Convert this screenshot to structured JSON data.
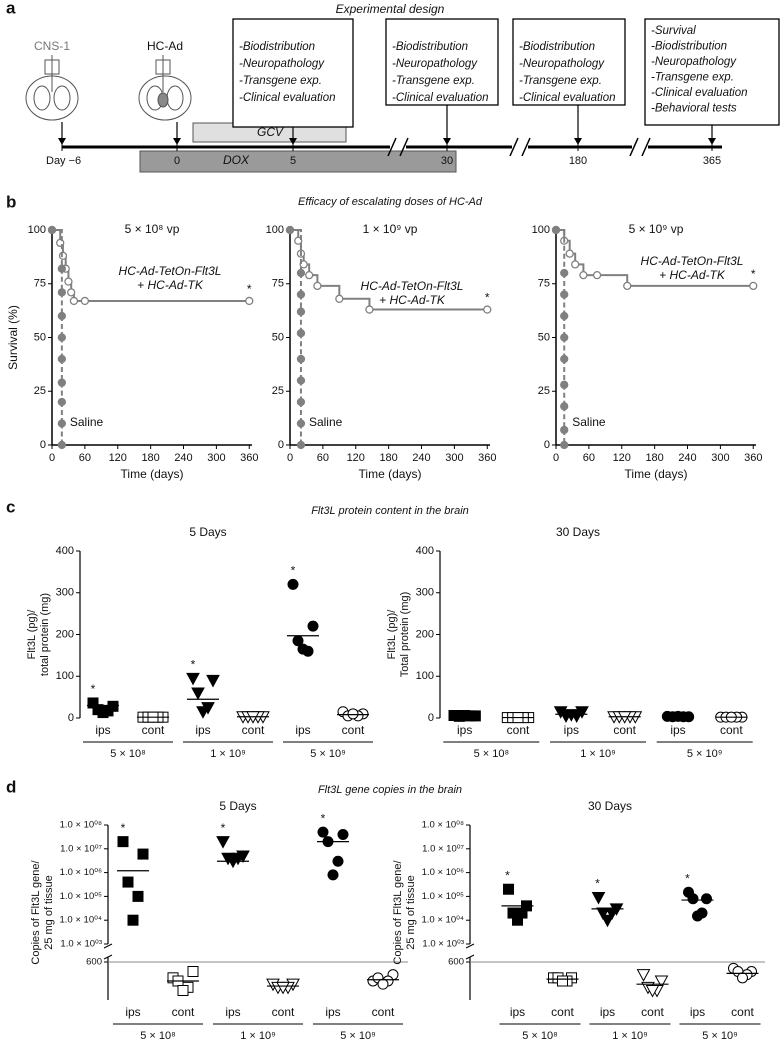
{
  "panel_labels": [
    "a",
    "b",
    "c",
    "d"
  ],
  "design": {
    "title": "Experimental design",
    "tumor_label": "CNS-1",
    "vector_label": "HC-Ad",
    "boxes": [
      [
        "-Biodistribution",
        "-Neuropathology",
        "-Transgene exp.",
        "-Clinical evaluation"
      ],
      [
        "-Biodistribution",
        "-Neuropathology",
        "-Transgene exp.",
        "-Clinical evaluation"
      ],
      [
        "-Biodistribution",
        "-Neuropathology",
        "-Transgene exp.",
        "-Clinical evaluation"
      ],
      [
        "-Survival",
        "-Biodistribution",
        "-Neuropathology",
        "-Transgene exp.",
        "-Clinical evaluation",
        "-Behavioral tests"
      ]
    ],
    "gcv_label": "GCV",
    "dox_label": "DOX",
    "timeline": [
      "Day −6",
      "0",
      "5",
      "30",
      "180",
      "365"
    ]
  },
  "survival_title": "Efficacy of escalating doses of HC-Ad",
  "protein_title": "Flt3L protein content in the brain",
  "gene_title": "Flt3L gene copies in the brain",
  "chart_data": [
    {
      "type": "line",
      "title": "5 × 10⁸ vp",
      "xlabel": "Time (days)",
      "ylabel": "Survival (%)",
      "xlim": [
        0,
        365
      ],
      "xticks": [
        0,
        60,
        120,
        180,
        240,
        300,
        360
      ],
      "ylim": [
        0,
        100
      ],
      "yticks": [
        0,
        25,
        50,
        75,
        100
      ],
      "series": [
        {
          "label": [
            "HC-Ad-TetOn-Flt3L",
            "+ HC-Ad-TK"
          ],
          "color": "#808080",
          "dashed": false,
          "marker": "open",
          "end_mark": "*",
          "x": [
            0,
            15,
            20,
            25,
            30,
            35,
            40,
            60,
            360
          ],
          "values": [
            100,
            94,
            88,
            82,
            76,
            71,
            67,
            67,
            67
          ]
        },
        {
          "label": [
            "Saline"
          ],
          "color": "#808080",
          "dashed": true,
          "marker": "filled",
          "x": [
            0,
            18,
            18,
            18,
            18,
            18,
            18,
            18,
            18,
            18
          ],
          "values": [
            100,
            82,
            71,
            60,
            50,
            40,
            29,
            20,
            10,
            0
          ]
        }
      ]
    },
    {
      "type": "line",
      "title": "1 × 10⁹ vp",
      "xlabel": "Time (days)",
      "xlim": [
        0,
        365
      ],
      "xticks": [
        0,
        60,
        120,
        180,
        240,
        300,
        360
      ],
      "ylim": [
        0,
        100
      ],
      "yticks": [
        0,
        25,
        50,
        75,
        100
      ],
      "series": [
        {
          "label": [
            "HC-Ad-TetOn-Flt3L",
            "+ HC-Ad-TK"
          ],
          "color": "#808080",
          "dashed": false,
          "marker": "open",
          "end_mark": "*",
          "x": [
            0,
            15,
            20,
            25,
            35,
            50,
            90,
            145,
            360
          ],
          "values": [
            100,
            95,
            89,
            84,
            79,
            74,
            68,
            63,
            63
          ]
        },
        {
          "label": [
            "Saline"
          ],
          "color": "#808080",
          "dashed": true,
          "marker": "filled",
          "x": [
            0,
            20,
            20,
            20,
            20,
            20,
            20,
            20,
            20,
            20
          ],
          "values": [
            100,
            80,
            70,
            62,
            52,
            40,
            30,
            20,
            10,
            0
          ]
        }
      ]
    },
    {
      "type": "line",
      "title": "5 × 10⁹ vp",
      "xlabel": "Time (days)",
      "xlim": [
        0,
        365
      ],
      "xticks": [
        0,
        60,
        120,
        180,
        240,
        300,
        360
      ],
      "ylim": [
        0,
        100
      ],
      "yticks": [
        0,
        25,
        50,
        75,
        100
      ],
      "series": [
        {
          "label": [
            "HC-Ad-TetOn-Flt3L",
            "+ HC-Ad-TK"
          ],
          "color": "#808080",
          "dashed": false,
          "marker": "open",
          "end_mark": "*",
          "x": [
            0,
            15,
            25,
            35,
            50,
            75,
            130,
            360
          ],
          "values": [
            100,
            95,
            89,
            84,
            79,
            79,
            74,
            74
          ]
        },
        {
          "label": [
            "Saline"
          ],
          "color": "#808080",
          "dashed": true,
          "marker": "filled",
          "x": [
            0,
            15,
            15,
            15,
            15,
            15,
            15,
            15,
            15,
            15
          ],
          "values": [
            100,
            80,
            70,
            60,
            50,
            40,
            28,
            18,
            7,
            0
          ]
        }
      ]
    },
    {
      "type": "dot",
      "title": "5 Days",
      "ylabel": [
        "Flt3L (pg)/",
        "total protein (mg)"
      ],
      "ylim": [
        0,
        400
      ],
      "yticks": [
        0,
        100,
        200,
        300,
        400
      ],
      "doses": [
        "5 × 10⁸",
        "1 × 10⁹",
        "5 × 10⁹"
      ],
      "groups": [
        {
          "name": "ips",
          "marker": "square",
          "filled": true,
          "values": [
            36,
            28,
            20,
            17,
            13
          ],
          "mean": 30,
          "annotation": "*"
        },
        {
          "name": "cont",
          "marker": "square",
          "filled": false,
          "values": [
            2,
            2,
            2,
            2,
            2
          ],
          "mean": 2
        },
        {
          "name": "ips",
          "marker": "triangle",
          "filled": true,
          "values": [
            95,
            90,
            60,
            25,
            15
          ],
          "mean": 45,
          "annotation": "*"
        },
        {
          "name": "cont",
          "marker": "triangle",
          "filled": false,
          "values": [
            3,
            3,
            3,
            3,
            3
          ],
          "mean": 3
        },
        {
          "name": "ips",
          "marker": "circle",
          "filled": true,
          "values": [
            320,
            220,
            185,
            160,
            165
          ],
          "mean": 197,
          "annotation": "*"
        },
        {
          "name": "cont",
          "marker": "circle",
          "filled": false,
          "values": [
            15,
            10,
            5,
            5,
            10
          ],
          "mean": 8
        }
      ]
    },
    {
      "type": "dot",
      "title": "30 Days",
      "ylabel": [
        "Flt3L (pg)/",
        "Total protein (mg)"
      ],
      "ylim": [
        0,
        400
      ],
      "yticks": [
        0,
        100,
        200,
        300,
        400
      ],
      "doses": [
        "5 × 10⁸",
        "1 × 10⁹",
        "5 × 10⁹"
      ],
      "groups": [
        {
          "name": "ips",
          "marker": "square",
          "filled": true,
          "values": [
            6,
            5,
            4,
            5,
            6
          ],
          "mean": 5
        },
        {
          "name": "cont",
          "marker": "square",
          "filled": false,
          "values": [
            1,
            1,
            1,
            1,
            1
          ],
          "mean": 1
        },
        {
          "name": "ips",
          "marker": "triangle",
          "filled": true,
          "values": [
            15,
            15,
            5,
            5,
            8
          ],
          "mean": 9
        },
        {
          "name": "cont",
          "marker": "triangle",
          "filled": false,
          "values": [
            3,
            3,
            3,
            3,
            3
          ],
          "mean": 3
        },
        {
          "name": "ips",
          "marker": "circle",
          "filled": true,
          "values": [
            4,
            3,
            3,
            3,
            4
          ],
          "mean": 3
        },
        {
          "name": "cont",
          "marker": "circle",
          "filled": false,
          "values": [
            2,
            2,
            2,
            2,
            2
          ],
          "mean": 2
        }
      ]
    },
    {
      "type": "dot",
      "title": "5 Days",
      "ylabel": [
        "Copies of Flt3L gene/",
        "25 mg of tissue"
      ],
      "log": true,
      "ylim": [
        1000,
        100000000
      ],
      "yticks": [
        {
          "value": 1000,
          "label": "1.0 × 10⁰³"
        },
        {
          "value": 10000,
          "label": "1.0 × 10⁰⁴"
        },
        {
          "value": 100000,
          "label": "1.0 × 10⁰⁵"
        },
        {
          "value": 1000000,
          "label": "1.0 × 10⁰⁶"
        },
        {
          "value": 10000000,
          "label": "1.0 × 10⁰⁷"
        },
        {
          "value": 100000000,
          "label": "1.0 × 10⁰⁸"
        }
      ],
      "lower_ylim": [
        0,
        600
      ],
      "lower_yticks": [
        600
      ],
      "lower_grid": true,
      "doses": [
        "5 × 10⁸",
        "1 × 10⁹",
        "5 × 10⁹"
      ],
      "groups": [
        {
          "name": "ips",
          "marker": "square",
          "filled": true,
          "values": [
            20000000,
            6000000,
            400000,
            100000,
            10000
          ],
          "mean": 1200000,
          "annotation": "*"
        },
        {
          "name": "cont",
          "marker": "square",
          "filled": false,
          "values": [
            350,
            450,
            300,
            200,
            150
          ],
          "mean": 300
        },
        {
          "name": "ips",
          "marker": "triangle",
          "filled": true,
          "values": [
            20000000,
            5000000,
            4000000,
            4000000,
            3000000
          ],
          "mean": 3000000,
          "annotation": "*"
        },
        {
          "name": "cont",
          "marker": "triangle",
          "filled": false,
          "values": [
            250,
            250,
            200,
            200,
            200
          ],
          "mean": 220
        },
        {
          "name": "ips",
          "marker": "circle",
          "filled": true,
          "values": [
            50000000,
            40000000,
            20000000,
            3000000,
            800000
          ],
          "mean": 20000000,
          "annotation": "*"
        },
        {
          "name": "cont",
          "marker": "circle",
          "filled": false,
          "values": [
            300,
            400,
            350,
            300,
            250
          ],
          "mean": 320
        }
      ]
    },
    {
      "type": "dot",
      "title": "30 Days",
      "ylabel": [
        "Copies of Flt3L gene/",
        "25 mg of tissue"
      ],
      "log": true,
      "ylim": [
        1000,
        100000000
      ],
      "yticks": [
        {
          "value": 1000,
          "label": "1.0 × 10⁰³"
        },
        {
          "value": 10000,
          "label": "1.0 × 10⁰⁴"
        },
        {
          "value": 100000,
          "label": "1.0 × 10⁰⁵"
        },
        {
          "value": 1000000,
          "label": "1.0 × 10⁰⁶"
        },
        {
          "value": 10000000,
          "label": "1.0 × 10⁰⁷"
        },
        {
          "value": 100000000,
          "label": "1.0 × 10⁰⁸"
        }
      ],
      "lower_ylim": [
        0,
        600
      ],
      "lower_yticks": [
        600
      ],
      "lower_grid": true,
      "doses": [
        "5 × 10⁸",
        "1 × 10⁹",
        "5 × 10⁹"
      ],
      "groups": [
        {
          "name": "ips",
          "marker": "square",
          "filled": true,
          "values": [
            200000,
            40000,
            20000,
            20000,
            10000
          ],
          "mean": 40000,
          "annotation": "*"
        },
        {
          "name": "cont",
          "marker": "square",
          "filled": false,
          "values": [
            350,
            350,
            350,
            300,
            300
          ],
          "mean": 330
        },
        {
          "name": "ips",
          "marker": "triangle",
          "filled": true,
          "values": [
            90000,
            30000,
            20000,
            20000,
            10000
          ],
          "mean": 30000,
          "annotation": "*"
        },
        {
          "name": "cont",
          "marker": "triangle",
          "filled": false,
          "values": [
            400,
            300,
            200,
            150,
            150
          ],
          "mean": 250
        },
        {
          "name": "ips",
          "marker": "circle",
          "filled": true,
          "values": [
            150000,
            80000,
            80000,
            20000,
            15000
          ],
          "mean": 70000,
          "annotation": "*"
        },
        {
          "name": "cont",
          "marker": "circle",
          "filled": false,
          "values": [
            500,
            450,
            450,
            400,
            350
          ],
          "mean": 420
        }
      ]
    }
  ]
}
